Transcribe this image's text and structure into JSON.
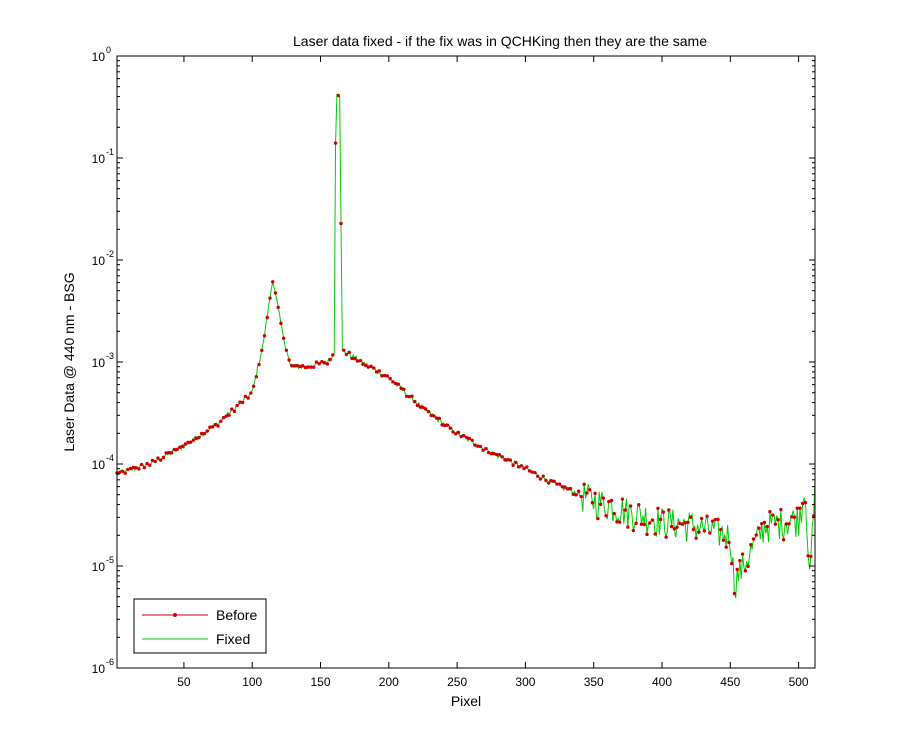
{
  "chart_data": {
    "type": "line",
    "title": "Laser data fixed - if the fix was in QCHKing then they are the same",
    "xlabel": "Pixel",
    "ylabel": "Laser Data @ 440 nm - BSG",
    "xlim": [
      1,
      512
    ],
    "ylim": [
      1e-06,
      1
    ],
    "yscale": "log",
    "x_ticks": [
      50,
      100,
      150,
      200,
      250,
      300,
      350,
      400,
      450,
      500
    ],
    "y_ticks": [
      {
        "base": "10",
        "exp": "-6",
        "value": 1e-06
      },
      {
        "base": "10",
        "exp": "-5",
        "value": 1e-05
      },
      {
        "base": "10",
        "exp": "-4",
        "value": 0.0001
      },
      {
        "base": "10",
        "exp": "-3",
        "value": 0.001
      },
      {
        "base": "10",
        "exp": "-2",
        "value": 0.01
      },
      {
        "base": "10",
        "exp": "-1",
        "value": 0.1
      },
      {
        "base": "10",
        "exp": "0",
        "value": 1
      }
    ],
    "grid": false,
    "legend_position": "bottom-left",
    "series": [
      {
        "name": "Before",
        "color": "#cc0000",
        "marker": "dot"
      },
      {
        "name": "Fixed",
        "color": "#00cc00",
        "marker": "none"
      }
    ],
    "approx_points": [
      {
        "x": 1,
        "y": 8e-05
      },
      {
        "x": 25,
        "y": 0.0001
      },
      {
        "x": 50,
        "y": 0.00015
      },
      {
        "x": 75,
        "y": 0.00025
      },
      {
        "x": 100,
        "y": 0.0005
      },
      {
        "x": 108,
        "y": 0.0015
      },
      {
        "x": 115,
        "y": 0.0065
      },
      {
        "x": 122,
        "y": 0.002
      },
      {
        "x": 128,
        "y": 0.0009
      },
      {
        "x": 140,
        "y": 0.0009
      },
      {
        "x": 155,
        "y": 0.001
      },
      {
        "x": 160,
        "y": 0.0012
      },
      {
        "x": 161,
        "y": 0.14
      },
      {
        "x": 162,
        "y": 0.42
      },
      {
        "x": 164,
        "y": 0.4
      },
      {
        "x": 166,
        "y": 0.0013
      },
      {
        "x": 180,
        "y": 0.001
      },
      {
        "x": 200,
        "y": 0.0007
      },
      {
        "x": 225,
        "y": 0.00035
      },
      {
        "x": 250,
        "y": 0.0002
      },
      {
        "x": 275,
        "y": 0.00013
      },
      {
        "x": 300,
        "y": 9e-05
      },
      {
        "x": 325,
        "y": 6e-05
      },
      {
        "x": 350,
        "y": 4.5e-05
      },
      {
        "x": 375,
        "y": 3.5e-05
      },
      {
        "x": 400,
        "y": 2.8e-05
      },
      {
        "x": 425,
        "y": 2.5e-05
      },
      {
        "x": 450,
        "y": 2e-05
      },
      {
        "x": 453,
        "y": 7e-06
      },
      {
        "x": 475,
        "y": 2.5e-05
      },
      {
        "x": 500,
        "y": 3e-05
      },
      {
        "x": 505,
        "y": 6e-05
      },
      {
        "x": 508,
        "y": 7e-06
      },
      {
        "x": 512,
        "y": 5.5e-05
      }
    ]
  }
}
